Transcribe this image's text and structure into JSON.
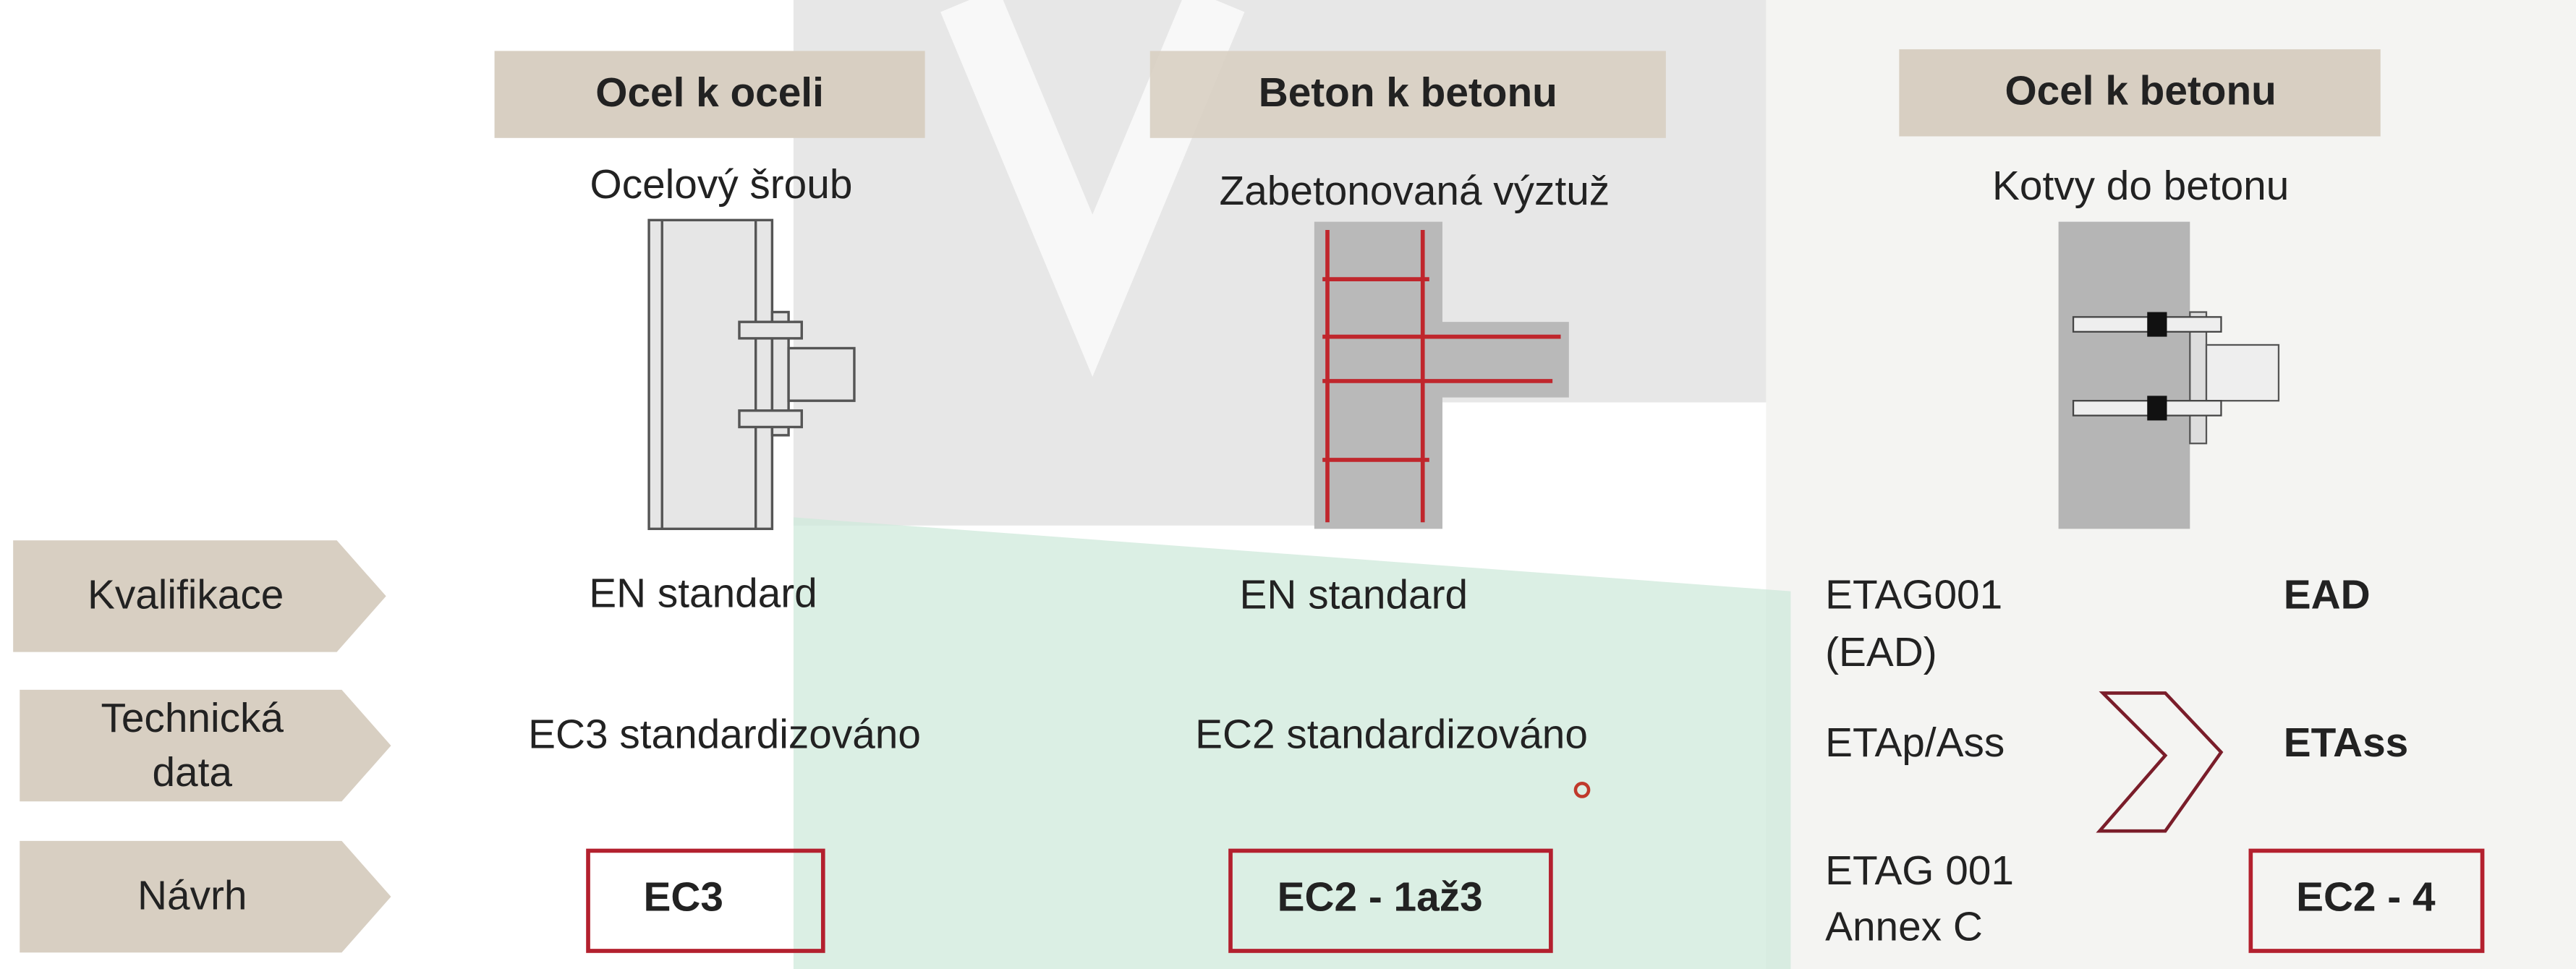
{
  "columns": [
    {
      "header": "Ocel k oceli",
      "subtitle": "Ocelový šroub"
    },
    {
      "header": "Beton k betonu",
      "subtitle": "Zabetonovaná výztuž"
    },
    {
      "header": "Ocel k betonu",
      "subtitle": "Kotvy do betonu"
    }
  ],
  "rows": [
    {
      "label": [
        "Kvalifikace"
      ],
      "cells": [
        "EN standard",
        "EN standard"
      ],
      "left": [
        "ETAG001",
        "(EAD)"
      ],
      "right": "EAD"
    },
    {
      "label": [
        "Technická",
        "data"
      ],
      "cells": [
        "EC3 standardizováno",
        "EC2 standardizováno"
      ],
      "left": [
        "ETAp/Ass"
      ],
      "right": "ETAss"
    },
    {
      "label": [
        "Návrh"
      ],
      "cells": [
        "EC3",
        "EC2 - 1až3"
      ],
      "left": [
        "ETAG 001",
        "Annex C"
      ],
      "right": "EC2 - 4"
    }
  ]
}
